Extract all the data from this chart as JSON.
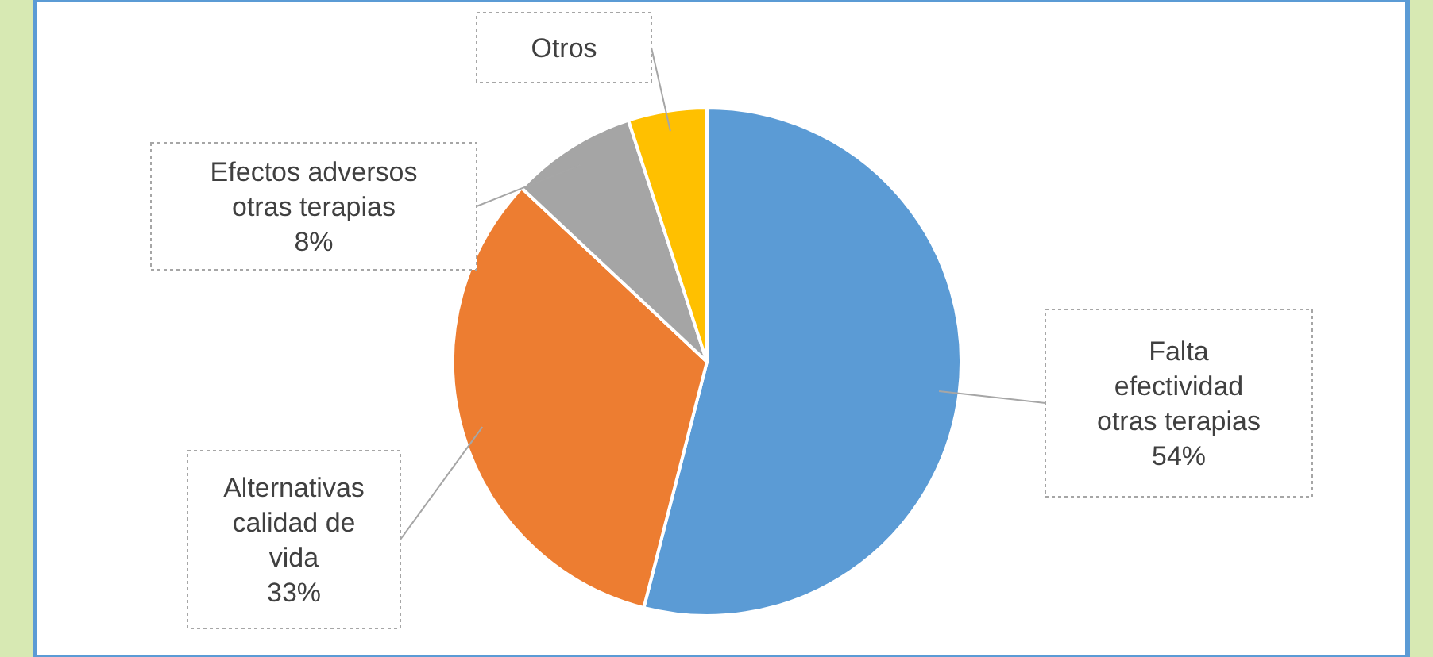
{
  "chart_data": {
    "type": "pie",
    "categories": [
      "Falta efectividad otras terapias",
      "Alternativas calidad de vida",
      "Efectos adversos otras terapias",
      "Otros"
    ],
    "values": [
      54,
      33,
      8,
      5
    ],
    "colors": [
      "#5b9bd5",
      "#ed7d31",
      "#a5a5a5",
      "#ffc000"
    ],
    "value_labels": [
      "54%",
      "33%",
      "8%",
      null
    ]
  }
}
